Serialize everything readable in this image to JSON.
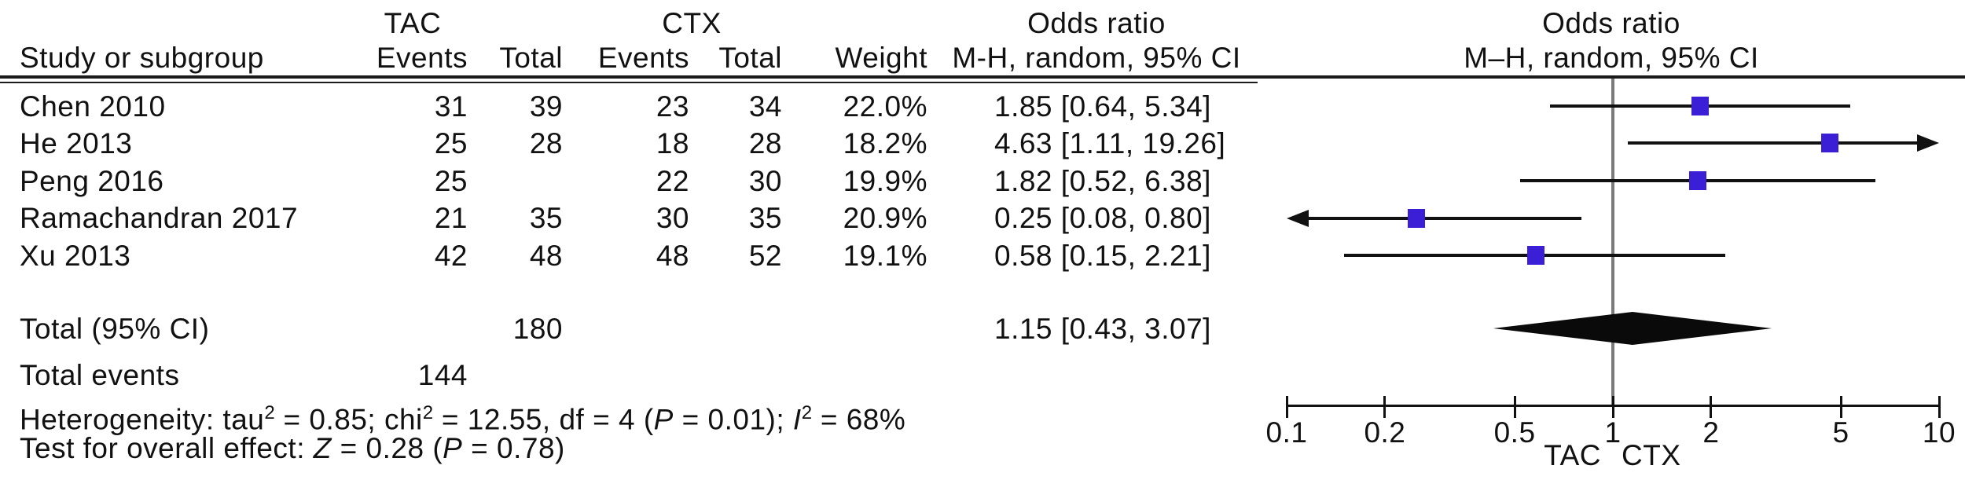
{
  "header": {
    "group_tac": "TAC",
    "group_ctx": "CTX",
    "or_left_title": "Odds ratio",
    "or_left_sub": "M-H, random, 95% CI",
    "or_right_title": "Odds ratio",
    "or_right_sub": "M–H, random, 95% CI",
    "study_col": "Study or subgroup",
    "events_col": "Events",
    "total_col": "Total",
    "weight_col": "Weight"
  },
  "table": {
    "rows": [
      {
        "study": "Chen 2010",
        "tac_events": "31",
        "tac_total": "39",
        "ctx_events": "23",
        "ctx_total": "34",
        "weight": "22.0%",
        "or_ci": "1.85 [0.64, 5.34]"
      },
      {
        "study": "He 2013",
        "tac_events": "25",
        "tac_total": "28",
        "ctx_events": "18",
        "ctx_total": "28",
        "weight": "18.2%",
        "or_ci": "4.63 [1.11, 19.26]"
      },
      {
        "study": "Peng 2016",
        "tac_events": "25",
        "tac_total": "",
        "ctx_events": "22",
        "ctx_total": "30",
        "weight": "19.9%",
        "or_ci": "1.82 [0.52, 6.38]"
      },
      {
        "study": "Ramachandran 2017",
        "tac_events": "21",
        "tac_total": "35",
        "ctx_events": "30",
        "ctx_total": "35",
        "weight": "20.9%",
        "or_ci": "0.25 [0.08, 0.80]"
      },
      {
        "study": "Xu 2013",
        "tac_events": "42",
        "tac_total": "48",
        "ctx_events": "48",
        "ctx_total": "52",
        "weight": "19.1%",
        "or_ci": "0.58 [0.15, 2.21]"
      }
    ]
  },
  "totals": {
    "label": "Total (95% CI)",
    "tac_total": "180",
    "or_ci": "1.15 [0.43, 3.07]",
    "events_label": "Total events",
    "events_value": "144"
  },
  "footnotes": {
    "heterogeneity_parts": [
      {
        "t": "Heterogeneity: tau"
      },
      {
        "sup": "2"
      },
      {
        "t": " = 0.85; chi"
      },
      {
        "sup": "2"
      },
      {
        "t": " = 12.55, df = 4 ("
      },
      {
        "i": "P"
      },
      {
        "t": " = 0.01); "
      },
      {
        "i": "I"
      },
      {
        "sup": "2"
      },
      {
        "t": " = 68%"
      }
    ],
    "overall_effect_parts": [
      {
        "t": "Test for overall effect: "
      },
      {
        "i": "Z"
      },
      {
        "t": " = 0.28 ("
      },
      {
        "i": "P"
      },
      {
        "t": " = 0.78)"
      }
    ]
  },
  "axis": {
    "ticks": [
      "0.1",
      "0.2",
      "0.5",
      "1",
      "2",
      "5",
      "10"
    ],
    "left_label": "TAC",
    "right_label": "CTX"
  },
  "chart_data": {
    "type": "forest",
    "x_scale": "log10",
    "x_range": [
      0.1,
      10
    ],
    "x_ticks": [
      0.1,
      0.2,
      0.5,
      1,
      2,
      5,
      10
    ],
    "null_line": 1,
    "effect_measure": "Odds ratio, M-H, random, 95% CI",
    "marker_color": "#3a1fd6",
    "null_line_color": "#7a7a7a",
    "favors_left": "TAC",
    "favors_right": "CTX",
    "studies": [
      {
        "name": "Chen 2010",
        "or": 1.85,
        "ci": [
          0.64,
          5.34
        ],
        "weight_pct": 22.0
      },
      {
        "name": "He 2013",
        "or": 4.63,
        "ci": [
          1.11,
          19.26
        ],
        "weight_pct": 18.2
      },
      {
        "name": "Peng 2016",
        "or": 1.82,
        "ci": [
          0.52,
          6.38
        ],
        "weight_pct": 19.9
      },
      {
        "name": "Ramachandran 2017",
        "or": 0.25,
        "ci": [
          0.08,
          0.8
        ],
        "weight_pct": 20.9
      },
      {
        "name": "Xu 2013",
        "or": 0.58,
        "ci": [
          0.15,
          2.21
        ],
        "weight_pct": 19.1
      }
    ],
    "total": {
      "name": "Total (95% CI)",
      "or": 1.15,
      "ci": [
        0.43,
        3.07
      ],
      "tac_total": 180,
      "total_events_tac": 144
    }
  }
}
